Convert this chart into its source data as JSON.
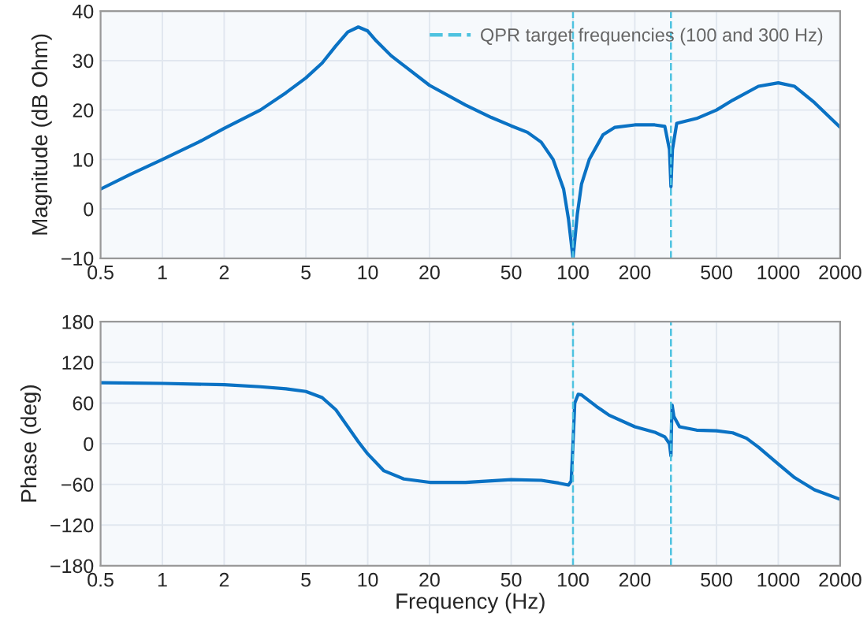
{
  "chart_data": [
    {
      "type": "line",
      "ylabel": "Magnitude (dB Ohm)",
      "log": "x",
      "grid": true,
      "legend": "top right",
      "marker": "none",
      "line_style": "solid",
      "xlim": [
        0.5,
        2000
      ],
      "xticks": [
        0.5,
        1,
        2,
        5,
        10,
        20,
        50,
        100,
        200,
        500,
        1000,
        2000
      ],
      "ylim": [
        -10,
        40
      ],
      "yticks": [
        -10,
        0,
        10,
        20,
        30,
        40
      ],
      "series": [
        {
          "color": "#0a72c4",
          "x": [
            0.5,
            0.7,
            1,
            1.5,
            2,
            3,
            4,
            5,
            6,
            7,
            8,
            9,
            10,
            11,
            13,
            15,
            20,
            30,
            40,
            50,
            60,
            70,
            80,
            90,
            95,
            100,
            105,
            110,
            120,
            140,
            160,
            200,
            250,
            280,
            295,
            300,
            305,
            320,
            400,
            500,
            600,
            800,
            1000,
            1200,
            1500,
            2000
          ],
          "values": [
            4,
            7,
            10,
            13.5,
            16.3,
            20,
            23.5,
            26.5,
            29.5,
            33,
            35.8,
            36.8,
            36,
            34,
            31,
            29,
            25,
            21,
            18.5,
            16.8,
            15.5,
            13.5,
            10,
            4,
            -2,
            -10,
            -1,
            5,
            10,
            15,
            16.5,
            17,
            17,
            16.7,
            12,
            4.5,
            12,
            17.3,
            18.3,
            20,
            22,
            24.8,
            25.5,
            24.8,
            21.5,
            16.5
          ]
        }
      ],
      "ref_lines": [
        {
          "axis": "x",
          "value": 100,
          "color": "#4fc3e0",
          "line_style": "dashed"
        },
        {
          "axis": "x",
          "value": 300,
          "label": "QPR target frequencies (100 and 300 Hz)",
          "color": "#4fc3e0",
          "line_style": "dashed"
        }
      ]
    },
    {
      "type": "line",
      "xlabel": "Frequency (Hz)",
      "ylabel": "Phase (deg)",
      "log": "x",
      "grid": true,
      "marker": "none",
      "line_style": "solid",
      "xlim": [
        0.5,
        2000
      ],
      "xticks": [
        0.5,
        1,
        2,
        5,
        10,
        20,
        50,
        100,
        200,
        500,
        1000,
        2000
      ],
      "ylim": [
        -180,
        180
      ],
      "yticks": [
        -180,
        -120,
        -60,
        0,
        60,
        120,
        180
      ],
      "series": [
        {
          "color": "#0a72c4",
          "x": [
            0.5,
            1,
            2,
            3,
            4,
            5,
            6,
            7,
            8,
            9,
            10,
            12,
            15,
            20,
            30,
            50,
            70,
            85,
            95,
            98,
            100,
            102,
            106,
            110,
            130,
            150,
            200,
            250,
            280,
            295,
            300,
            302,
            304,
            310,
            330,
            400,
            500,
            600,
            700,
            800,
            1000,
            1200,
            1500,
            2000
          ],
          "values": [
            90,
            89,
            87,
            84,
            81,
            77,
            68,
            50,
            25,
            3,
            -15,
            -40,
            -52,
            -57,
            -57,
            -53,
            -54,
            -58,
            -61,
            -55,
            0,
            60,
            73,
            72,
            55,
            42,
            25,
            17,
            10,
            0,
            -18,
            30,
            57,
            40,
            25,
            20,
            19,
            16,
            8,
            -5,
            -30,
            -50,
            -68,
            -82
          ]
        }
      ],
      "ref_lines": [
        {
          "axis": "x",
          "value": 100,
          "color": "#4fc3e0",
          "line_style": "dashed"
        },
        {
          "axis": "x",
          "value": 300,
          "color": "#4fc3e0",
          "line_style": "dashed"
        }
      ]
    }
  ]
}
